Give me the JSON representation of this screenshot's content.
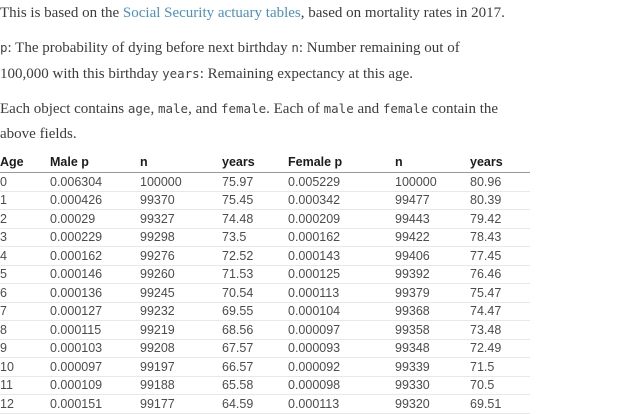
{
  "colors": {
    "background": "#ffffff",
    "body_text": "#3c3c3c",
    "link": "#4a90c2",
    "inline_code_text": "#444444",
    "table_header_text": "#1c1c1c",
    "table_cell_text": "#4c4c4c",
    "table_header_border": "#999999",
    "table_row_border": "#e8e8e8"
  },
  "intro": {
    "para1": {
      "segments": [
        {
          "t": "text",
          "v": "This is based on the "
        },
        {
          "t": "link",
          "v": "Social Security actuary tables",
          "name": "actuary-tables-link"
        },
        {
          "t": "text",
          "v": ", based on mortality rates in 2017."
        }
      ]
    },
    "para2": {
      "segments": [
        {
          "t": "code",
          "v": "p"
        },
        {
          "t": "text",
          "v": ": The probability of dying before next birthday "
        },
        {
          "t": "code",
          "v": "n"
        },
        {
          "t": "text",
          "v": ": Number remaining out of"
        },
        {
          "t": "br"
        },
        {
          "t": "text",
          "v": "100,000 with this birthday "
        },
        {
          "t": "code",
          "v": "years"
        },
        {
          "t": "text",
          "v": ": Remaining expectancy at this age."
        }
      ]
    },
    "para3": {
      "segments": [
        {
          "t": "text",
          "v": "Each object contains "
        },
        {
          "t": "code",
          "v": "age"
        },
        {
          "t": "text",
          "v": ", "
        },
        {
          "t": "code",
          "v": "male"
        },
        {
          "t": "text",
          "v": ", and "
        },
        {
          "t": "code",
          "v": "female"
        },
        {
          "t": "text",
          "v": ". Each of "
        },
        {
          "t": "code",
          "v": "male"
        },
        {
          "t": "text",
          "v": " and "
        },
        {
          "t": "code",
          "v": "female"
        },
        {
          "t": "text",
          "v": " contain the"
        },
        {
          "t": "br"
        },
        {
          "t": "text",
          "v": "above fields."
        }
      ]
    }
  },
  "table": {
    "headers": [
      "Age",
      "Male p",
      "n",
      "years",
      "Female p",
      "n",
      "years"
    ],
    "rows": [
      [
        "0",
        "0.006304",
        "100000",
        "75.97",
        "0.005229",
        "100000",
        "80.96"
      ],
      [
        "1",
        "0.000426",
        "99370",
        "75.45",
        "0.000342",
        "99477",
        "80.39"
      ],
      [
        "2",
        "0.00029",
        "99327",
        "74.48",
        "0.000209",
        "99443",
        "79.42"
      ],
      [
        "3",
        "0.000229",
        "99298",
        "73.5",
        "0.000162",
        "99422",
        "78.43"
      ],
      [
        "4",
        "0.000162",
        "99276",
        "72.52",
        "0.000143",
        "99406",
        "77.45"
      ],
      [
        "5",
        "0.000146",
        "99260",
        "71.53",
        "0.000125",
        "99392",
        "76.46"
      ],
      [
        "6",
        "0.000136",
        "99245",
        "70.54",
        "0.000113",
        "99379",
        "75.47"
      ],
      [
        "7",
        "0.000127",
        "99232",
        "69.55",
        "0.000104",
        "99368",
        "74.47"
      ],
      [
        "8",
        "0.000115",
        "99219",
        "68.56",
        "0.000097",
        "99358",
        "73.48"
      ],
      [
        "9",
        "0.000103",
        "99208",
        "67.57",
        "0.000093",
        "99348",
        "72.49"
      ],
      [
        "10",
        "0.000097",
        "99197",
        "66.57",
        "0.000092",
        "99339",
        "71.5"
      ],
      [
        "11",
        "0.000109",
        "99188",
        "65.58",
        "0.000098",
        "99330",
        "70.5"
      ],
      [
        "12",
        "0.000151",
        "99177",
        "64.59",
        "0.000113",
        "99320",
        "69.51"
      ]
    ]
  }
}
